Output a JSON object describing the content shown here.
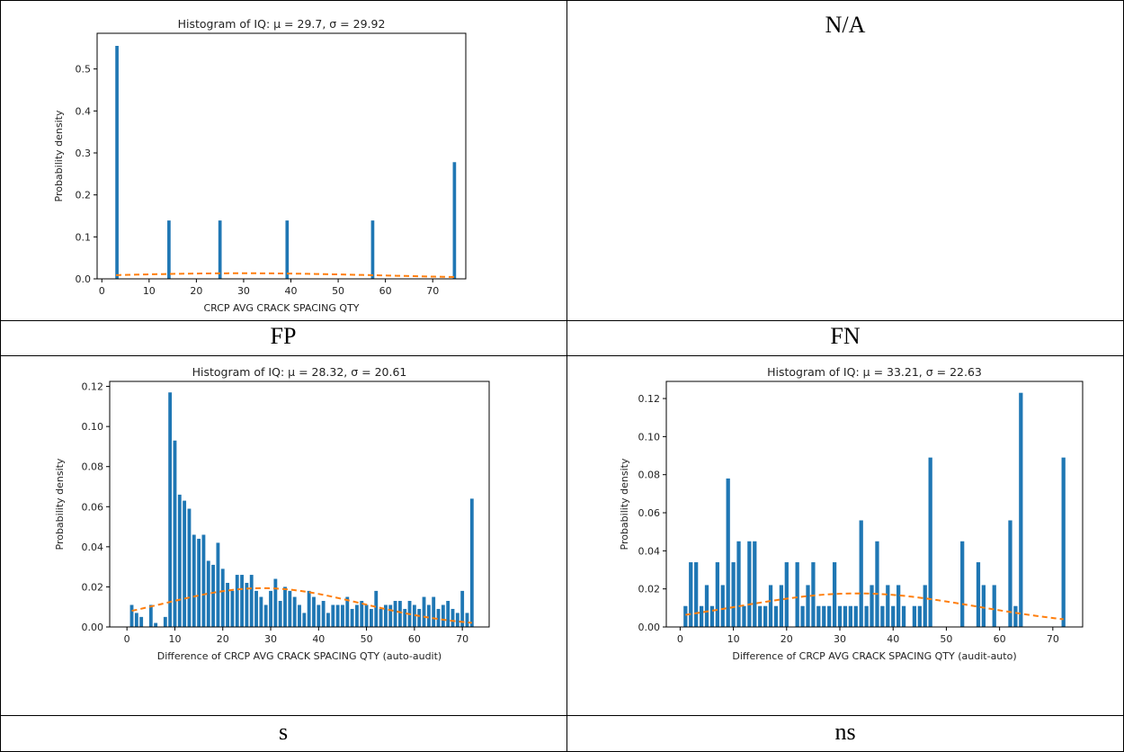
{
  "cells": {
    "top_right": "N/A",
    "mid_left": "FP",
    "mid_right": "FN",
    "bottom_left": "s",
    "bottom_right": "ns"
  },
  "colors": {
    "bar": "#1f77b4",
    "fit": "#ff7f0e",
    "axis": "#000000"
  },
  "chart_data": [
    {
      "type": "bar",
      "title": "Histogram of IQ: μ = 29.7, σ = 29.92",
      "xlabel": "CRCP AVG CRACK SPACING QTY",
      "ylabel": "Probability density",
      "xlim": [
        -1,
        77
      ],
      "ylim": [
        0,
        0.585
      ],
      "xticks": [
        0,
        10,
        20,
        30,
        40,
        50,
        60,
        70
      ],
      "yticks": [
        0.0,
        0.1,
        0.2,
        0.3,
        0.4,
        0.5
      ],
      "ytick_decimals": 1,
      "bar_width": 0.7,
      "bars": [
        [
          3.2,
          0.555
        ],
        [
          14.2,
          0.139
        ],
        [
          25.0,
          0.139
        ],
        [
          39.2,
          0.139
        ],
        [
          57.3,
          0.139
        ],
        [
          74.6,
          0.278
        ]
      ],
      "fit_curve": {
        "style": "dashed",
        "mu": 29.7,
        "sigma": 29.92,
        "x_range": [
          3,
          75
        ]
      }
    },
    {
      "type": "bar",
      "title": "Histogram of IQ: μ = 28.32, σ = 20.61",
      "xlabel": "Difference of CRCP AVG CRACK SPACING QTY (auto-audit)",
      "ylabel": "Probability density",
      "xlim": [
        -3.6,
        75.6
      ],
      "ylim": [
        0,
        0.1225
      ],
      "xticks": [
        0,
        10,
        20,
        30,
        40,
        50,
        60,
        70
      ],
      "yticks": [
        0.0,
        0.02,
        0.04,
        0.06,
        0.08,
        0.1,
        0.12
      ],
      "ytick_decimals": 2,
      "bar_width": 0.72,
      "bars": [
        [
          1,
          0.011
        ],
        [
          2,
          0.007
        ],
        [
          3,
          0.005
        ],
        [
          4,
          0.0
        ],
        [
          5,
          0.011
        ],
        [
          6,
          0.002
        ],
        [
          7,
          0.0
        ],
        [
          8,
          0.005
        ],
        [
          9,
          0.117
        ],
        [
          10,
          0.093
        ],
        [
          11,
          0.066
        ],
        [
          12,
          0.063
        ],
        [
          13,
          0.059
        ],
        [
          14,
          0.046
        ],
        [
          15,
          0.044
        ],
        [
          16,
          0.046
        ],
        [
          17,
          0.033
        ],
        [
          18,
          0.031
        ],
        [
          19,
          0.042
        ],
        [
          20,
          0.029
        ],
        [
          21,
          0.022
        ],
        [
          22,
          0.018
        ],
        [
          23,
          0.026
        ],
        [
          24,
          0.026
        ],
        [
          25,
          0.022
        ],
        [
          26,
          0.026
        ],
        [
          27,
          0.018
        ],
        [
          28,
          0.015
        ],
        [
          29,
          0.011
        ],
        [
          30,
          0.018
        ],
        [
          31,
          0.024
        ],
        [
          32,
          0.013
        ],
        [
          33,
          0.02
        ],
        [
          34,
          0.018
        ],
        [
          35,
          0.015
        ],
        [
          36,
          0.011
        ],
        [
          37,
          0.007
        ],
        [
          38,
          0.018
        ],
        [
          39,
          0.015
        ],
        [
          40,
          0.011
        ],
        [
          41,
          0.013
        ],
        [
          42,
          0.007
        ],
        [
          43,
          0.011
        ],
        [
          44,
          0.011
        ],
        [
          45,
          0.011
        ],
        [
          46,
          0.015
        ],
        [
          47,
          0.009
        ],
        [
          48,
          0.011
        ],
        [
          49,
          0.013
        ],
        [
          50,
          0.011
        ],
        [
          51,
          0.009
        ],
        [
          52,
          0.018
        ],
        [
          53,
          0.009
        ],
        [
          54,
          0.011
        ],
        [
          55,
          0.011
        ],
        [
          56,
          0.013
        ],
        [
          57,
          0.013
        ],
        [
          58,
          0.009
        ],
        [
          59,
          0.013
        ],
        [
          60,
          0.011
        ],
        [
          61,
          0.009
        ],
        [
          62,
          0.015
        ],
        [
          63,
          0.011
        ],
        [
          64,
          0.015
        ],
        [
          65,
          0.009
        ],
        [
          66,
          0.011
        ],
        [
          67,
          0.013
        ],
        [
          68,
          0.009
        ],
        [
          69,
          0.007
        ],
        [
          70,
          0.018
        ],
        [
          71,
          0.007
        ],
        [
          72,
          0.064
        ]
      ],
      "fit_curve": {
        "style": "dashed",
        "mu": 28.32,
        "sigma": 20.61,
        "x_range": [
          1,
          72
        ]
      }
    },
    {
      "type": "bar",
      "title": "Histogram of IQ: μ = 33.21, σ = 22.63",
      "xlabel": "Difference of CRCP AVG CRACK SPACING QTY (audit-auto)",
      "ylabel": "Probability density",
      "xlim": [
        -2.6,
        75.6
      ],
      "ylim": [
        0,
        0.129
      ],
      "xticks": [
        0,
        10,
        20,
        30,
        40,
        50,
        60,
        70
      ],
      "yticks": [
        0.0,
        0.02,
        0.04,
        0.06,
        0.08,
        0.1,
        0.12
      ],
      "ytick_decimals": 2,
      "bar_width": 0.72,
      "bars": [
        [
          1,
          0.011
        ],
        [
          2,
          0.034
        ],
        [
          3,
          0.034
        ],
        [
          4,
          0.011
        ],
        [
          5,
          0.022
        ],
        [
          6,
          0.011
        ],
        [
          7,
          0.034
        ],
        [
          8,
          0.022
        ],
        [
          9,
          0.078
        ],
        [
          10,
          0.034
        ],
        [
          11,
          0.045
        ],
        [
          12,
          0.011
        ],
        [
          13,
          0.045
        ],
        [
          14,
          0.045
        ],
        [
          15,
          0.011
        ],
        [
          16,
          0.011
        ],
        [
          17,
          0.022
        ],
        [
          18,
          0.011
        ],
        [
          19,
          0.022
        ],
        [
          20,
          0.034
        ],
        [
          22,
          0.034
        ],
        [
          23,
          0.011
        ],
        [
          24,
          0.022
        ],
        [
          25,
          0.034
        ],
        [
          26,
          0.011
        ],
        [
          27,
          0.011
        ],
        [
          28,
          0.011
        ],
        [
          29,
          0.034
        ],
        [
          30,
          0.011
        ],
        [
          31,
          0.011
        ],
        [
          32,
          0.011
        ],
        [
          33,
          0.011
        ],
        [
          34,
          0.056
        ],
        [
          35,
          0.011
        ],
        [
          36,
          0.022
        ],
        [
          37,
          0.045
        ],
        [
          38,
          0.011
        ],
        [
          39,
          0.022
        ],
        [
          40,
          0.011
        ],
        [
          41,
          0.022
        ],
        [
          42,
          0.011
        ],
        [
          44,
          0.011
        ],
        [
          45,
          0.011
        ],
        [
          46,
          0.022
        ],
        [
          47,
          0.089
        ],
        [
          53,
          0.045
        ],
        [
          56,
          0.034
        ],
        [
          57,
          0.022
        ],
        [
          59,
          0.022
        ],
        [
          62,
          0.056
        ],
        [
          63,
          0.011
        ],
        [
          64,
          0.123
        ],
        [
          72,
          0.089
        ]
      ],
      "fit_curve": {
        "style": "dashed",
        "mu": 33.21,
        "sigma": 22.63,
        "x_range": [
          1,
          72
        ]
      }
    }
  ]
}
